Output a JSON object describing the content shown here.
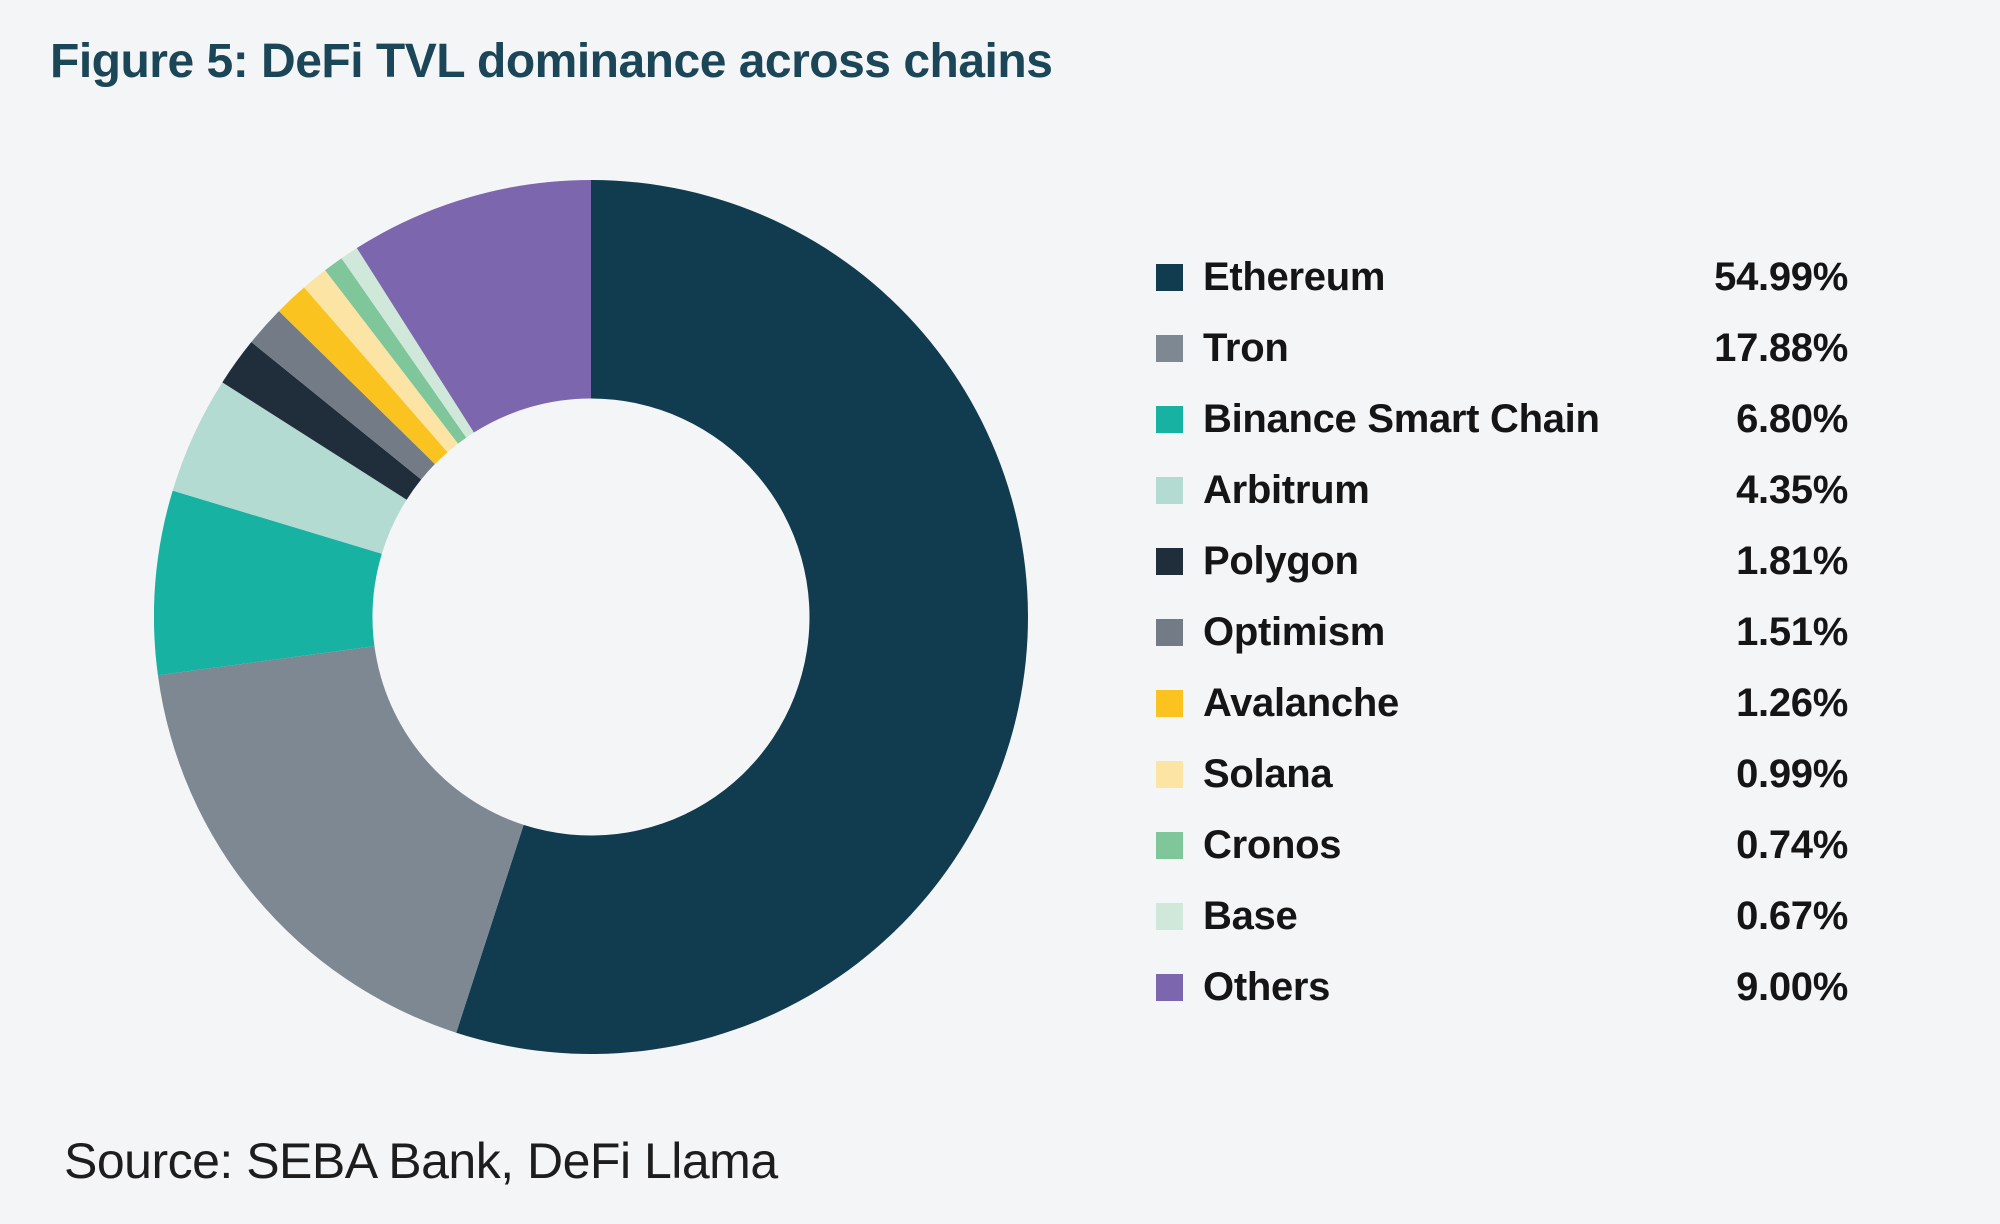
{
  "page": {
    "title": "Figure 5: DeFi TVL dominance across chains",
    "source": "Source: SEBA Bank, DeFi Llama",
    "background_color": "#f4f5f7",
    "title_color": "#1b4658"
  },
  "chart_data": {
    "type": "pie",
    "subtype": "donut",
    "title": "Figure 5: DeFi TVL dominance across chains",
    "unit": "%",
    "start_angle_deg": 0,
    "direction": "clockwise",
    "inner_radius_ratio": 0.5,
    "legend_position": "right",
    "grid": false,
    "categories": [
      "Ethereum",
      "Tron",
      "Binance Smart Chain",
      "Arbitrum",
      "Polygon",
      "Optimism",
      "Avalanche",
      "Solana",
      "Cronos",
      "Base",
      "Others"
    ],
    "values": [
      54.99,
      17.88,
      6.8,
      4.35,
      1.81,
      1.51,
      1.26,
      0.99,
      0.74,
      0.67,
      9.0
    ],
    "labels": [
      "54.99%",
      "17.88%",
      "6.80%",
      "4.35%",
      "1.81%",
      "1.51%",
      "1.26%",
      "0.99%",
      "0.74%",
      "0.67%",
      "9.00%"
    ],
    "colors": [
      "#113c4f",
      "#7e8893",
      "#18b2a3",
      "#b4dbd2",
      "#202e3b",
      "#737b86",
      "#fbc31f",
      "#fce4a4",
      "#7fc69b",
      "#cfe8d9",
      "#7c66ae"
    ],
    "source": "Source: SEBA Bank, DeFi Llama"
  }
}
